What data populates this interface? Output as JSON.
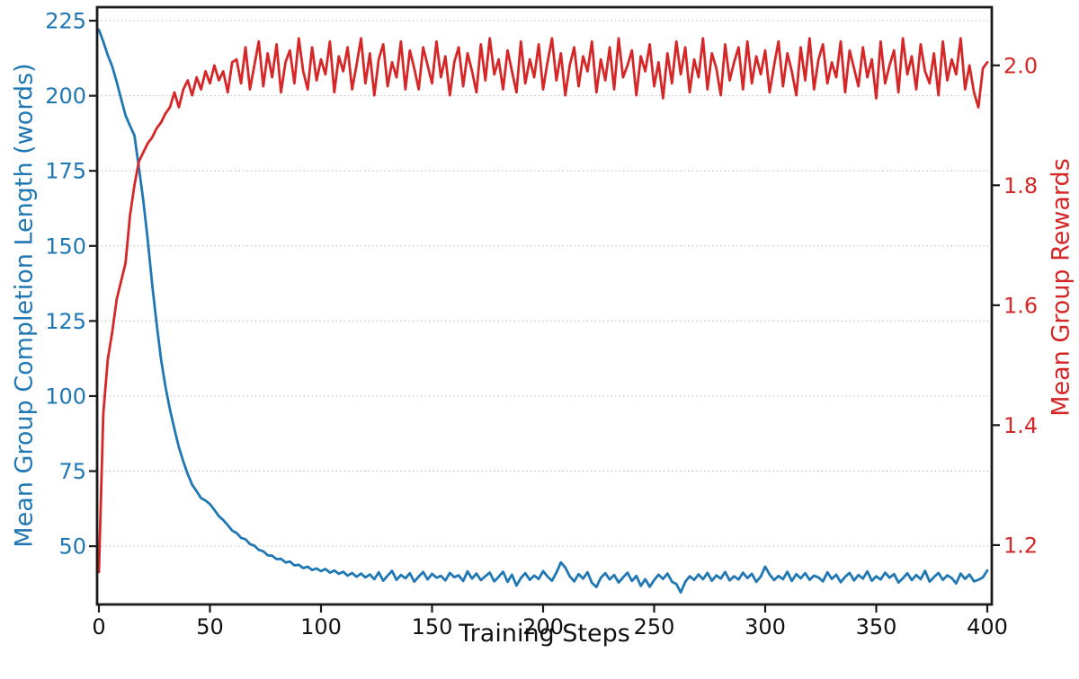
{
  "figure": {
    "background": "#ffffff",
    "frame_color": "#1a1a1a",
    "grid_color": "#bbbbbb"
  },
  "axes": {
    "x": {
      "label": "Training Steps",
      "color": "#111111",
      "tick_labels": [
        "0",
        "50",
        "100",
        "150",
        "200",
        "250",
        "300",
        "350",
        "400"
      ],
      "tick_values": [
        0,
        50,
        100,
        150,
        200,
        250,
        300,
        350,
        400
      ]
    },
    "y_left": {
      "label": "Mean Group Completion Length (words)",
      "color": "#1f77b4",
      "tick_labels": [
        "225",
        "200",
        "175",
        "150",
        "125",
        "100",
        "75",
        "50"
      ],
      "tick_values": [
        225,
        200,
        175,
        150,
        125,
        100,
        75,
        50
      ]
    },
    "y_right": {
      "label": "Mean Group Rewards",
      "color": "#d62728",
      "tick_labels": [
        "2.0",
        "1.8",
        "1.6",
        "1.4",
        "1.2"
      ],
      "tick_values": [
        2.0,
        1.8,
        1.6,
        1.4,
        1.2
      ]
    }
  },
  "chart_data": {
    "type": "line",
    "title": "",
    "xlabel": "Training Steps",
    "ylabel_left": "Mean Group Completion Length (words)",
    "ylabel_right": "Mean Group Rewards",
    "grid": "horizontal-dashed-left-axis-only",
    "legend": "none",
    "xlim": [
      0,
      400
    ],
    "ylim_left": [
      30.6,
      229.5
    ],
    "ylim_right": [
      1.101,
      2.097
    ],
    "x": [
      0,
      2,
      4,
      6,
      8,
      10,
      12,
      14,
      16,
      18,
      20,
      22,
      24,
      26,
      28,
      30,
      32,
      34,
      36,
      38,
      40,
      42,
      44,
      46,
      48,
      50,
      52,
      54,
      56,
      58,
      60,
      62,
      64,
      66,
      68,
      70,
      72,
      74,
      76,
      78,
      80,
      82,
      84,
      86,
      88,
      90,
      92,
      94,
      96,
      98,
      100,
      102,
      104,
      106,
      108,
      110,
      112,
      114,
      116,
      118,
      120,
      122,
      124,
      126,
      128,
      130,
      132,
      134,
      136,
      138,
      140,
      142,
      144,
      146,
      148,
      150,
      152,
      154,
      156,
      158,
      160,
      162,
      164,
      166,
      168,
      170,
      172,
      174,
      176,
      178,
      180,
      182,
      184,
      186,
      188,
      190,
      192,
      194,
      196,
      198,
      200,
      202,
      204,
      206,
      208,
      210,
      212,
      214,
      216,
      218,
      220,
      222,
      224,
      226,
      228,
      230,
      232,
      234,
      236,
      238,
      240,
      242,
      244,
      246,
      248,
      250,
      252,
      254,
      256,
      258,
      260,
      262,
      264,
      266,
      268,
      270,
      272,
      274,
      276,
      278,
      280,
      282,
      284,
      286,
      288,
      290,
      292,
      294,
      296,
      298,
      300,
      302,
      304,
      306,
      308,
      310,
      312,
      314,
      316,
      318,
      320,
      322,
      324,
      326,
      328,
      330,
      332,
      334,
      336,
      338,
      340,
      342,
      344,
      346,
      348,
      350,
      352,
      354,
      356,
      358,
      360,
      362,
      364,
      366,
      368,
      370,
      372,
      374,
      376,
      378,
      380,
      382,
      384,
      386,
      388,
      390,
      392,
      394,
      396,
      398,
      400
    ],
    "series": [
      {
        "name": "Mean Group Completion Length (words)",
        "axis": "left",
        "color": "#1f77b4",
        "values": [
          222,
          218,
          213.5,
          209.8,
          204.6,
          199,
          193.5,
          190,
          186.8,
          176,
          165,
          152,
          137,
          124,
          112,
          103,
          95.5,
          89,
          83,
          78.2,
          74,
          70.5,
          68.3,
          66,
          65.2,
          64,
          62.1,
          60,
          58.7,
          57,
          55.2,
          54.4,
          52.8,
          52.3,
          50.7,
          50.2,
          48.8,
          48.3,
          47,
          46.8,
          45.7,
          45.8,
          44.6,
          44.9,
          43.6,
          43.8,
          42.7,
          43.2,
          42.1,
          42.6,
          41.7,
          42.4,
          41.2,
          41.9,
          40.8,
          41.5,
          40.2,
          41.1,
          39.8,
          40.9,
          39.6,
          40.6,
          39.0,
          41.3,
          38.5,
          40.2,
          41.8,
          38.8,
          40.4,
          39.3,
          41.0,
          38.2,
          39.9,
          41.4,
          38.9,
          40.8,
          39.5,
          40.1,
          38.6,
          41.1,
          39.7,
          40.3,
          38.4,
          41.6,
          39.2,
          40.9,
          38.7,
          40.0,
          41.2,
          38.3,
          39.8,
          41.5,
          38.1,
          40.5,
          36.9,
          39.4,
          41.0,
          38.8,
          40.2,
          39.1,
          41.7,
          39.9,
          38.5,
          41.2,
          44.6,
          42.9,
          40.0,
          38.3,
          40.7,
          39.2,
          41.3,
          37.8,
          36.4,
          39.5,
          41.0,
          38.9,
          40.4,
          37.9,
          39.6,
          41.2,
          38.4,
          40.1,
          36.8,
          39.0,
          36.5,
          38.7,
          40.5,
          39.1,
          40.9,
          38.2,
          37.4,
          34.6,
          38.1,
          40.0,
          38.8,
          40.6,
          39.0,
          41.1,
          38.5,
          40.3,
          39.2,
          41.4,
          38.6,
          40.0,
          38.9,
          41.2,
          39.4,
          40.8,
          38.1,
          39.9,
          43.2,
          40.6,
          38.7,
          40.1,
          39.0,
          41.5,
          38.4,
          40.7,
          39.3,
          41.0,
          38.8,
          40.2,
          39.6,
          38.3,
          41.3,
          39.1,
          40.5,
          38.0,
          39.8,
          41.1,
          38.6,
          40.4,
          39.2,
          41.6,
          38.5,
          40.0,
          38.9,
          41.2,
          39.5,
          40.7,
          37.9,
          39.3,
          41.0,
          38.7,
          40.4,
          39.0,
          41.8,
          38.2,
          39.7,
          41.1,
          38.8,
          40.3,
          39.4,
          37.6,
          40.9,
          39.1,
          40.6,
          38.3,
          38.8,
          39.6,
          41.9
        ]
      },
      {
        "name": "Mean Group Rewards",
        "axis": "right",
        "color": "#d62728",
        "values": [
          1.155,
          1.42,
          1.51,
          1.555,
          1.61,
          1.64,
          1.67,
          1.75,
          1.8,
          1.84,
          1.855,
          1.87,
          1.88,
          1.895,
          1.905,
          1.92,
          1.93,
          1.955,
          1.93,
          1.96,
          1.975,
          1.95,
          1.98,
          1.96,
          1.99,
          1.97,
          2.0,
          1.975,
          1.99,
          1.955,
          2.005,
          2.01,
          1.97,
          2.03,
          1.96,
          2.0,
          2.04,
          1.965,
          2.02,
          1.98,
          2.035,
          1.955,
          2.005,
          2.025,
          1.97,
          2.045,
          1.99,
          1.96,
          2.03,
          1.975,
          2.01,
          1.985,
          2.04,
          1.955,
          2.015,
          1.99,
          2.03,
          1.96,
          2.0,
          2.045,
          1.97,
          2.02,
          1.95,
          2.01,
          2.035,
          1.965,
          2.005,
          1.98,
          2.04,
          1.96,
          2.025,
          1.995,
          1.96,
          2.03,
          2.0,
          1.97,
          2.04,
          1.98,
          2.015,
          1.95,
          2.005,
          2.03,
          1.965,
          2.02,
          1.99,
          1.955,
          2.035,
          1.975,
          2.045,
          1.985,
          2.01,
          1.96,
          2.025,
          1.99,
          1.955,
          2.04,
          1.97,
          2.01,
          1.98,
          2.035,
          1.96,
          2.005,
          2.045,
          1.975,
          2.02,
          1.95,
          2.0,
          2.03,
          1.965,
          2.015,
          1.99,
          2.04,
          1.955,
          2.01,
          1.975,
          2.03,
          1.96,
          2.045,
          1.98,
          2.0,
          2.025,
          1.95,
          2.015,
          1.99,
          2.035,
          1.965,
          2.005,
          1.945,
          2.02,
          1.97,
          2.04,
          1.985,
          2.03,
          1.955,
          2.01,
          1.98,
          2.045,
          1.96,
          2.02,
          1.995,
          1.95,
          2.035,
          1.975,
          2.005,
          2.03,
          1.96,
          2.04,
          1.97,
          2.015,
          1.985,
          2.025,
          1.955,
          2.0,
          2.04,
          1.965,
          2.02,
          1.99,
          1.95,
          2.03,
          1.975,
          2.045,
          1.96,
          2.01,
          2.035,
          1.97,
          2.005,
          1.98,
          2.04,
          1.955,
          2.025,
          1.995,
          1.965,
          2.03,
          1.98,
          2.01,
          1.945,
          2.04,
          1.97,
          2.0,
          2.025,
          1.955,
          2.045,
          1.985,
          2.015,
          1.96,
          2.035,
          1.99,
          1.97,
          2.02,
          1.95,
          2.04,
          1.975,
          2.01,
          1.985,
          2.045,
          1.96,
          2.0,
          1.955,
          1.93,
          1.995,
          2.005
        ]
      }
    ]
  }
}
